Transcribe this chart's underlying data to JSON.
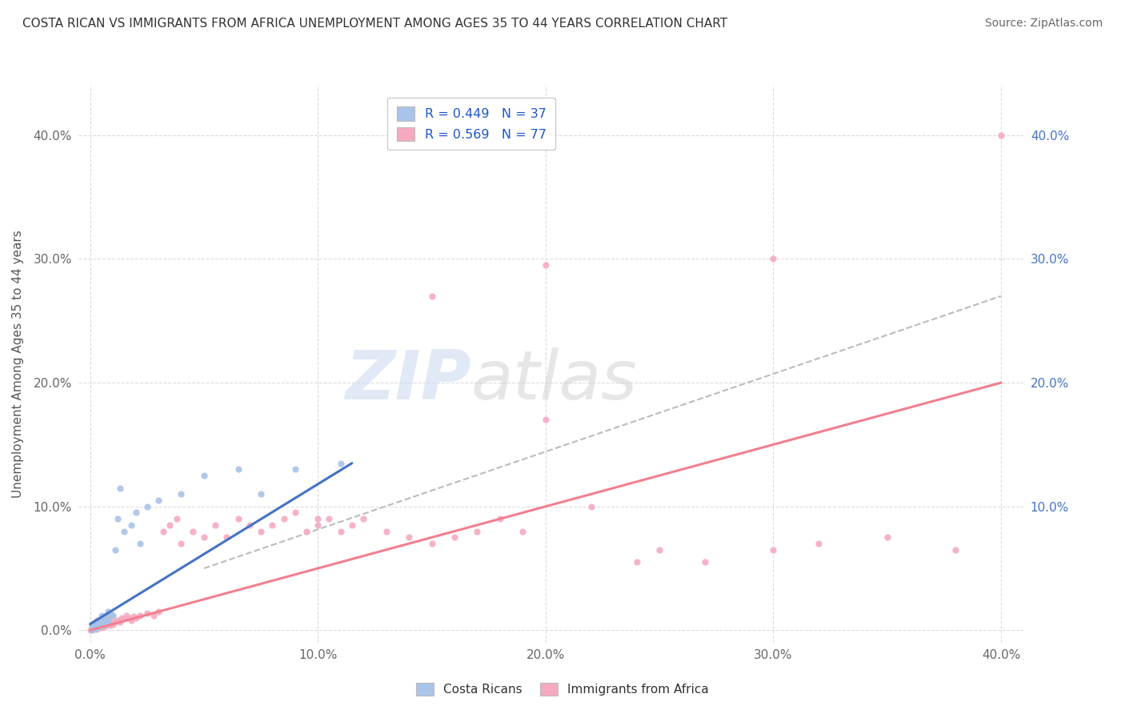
{
  "title": "COSTA RICAN VS IMMIGRANTS FROM AFRICA UNEMPLOYMENT AMONG AGES 35 TO 44 YEARS CORRELATION CHART",
  "source": "Source: ZipAtlas.com",
  "ylabel": "Unemployment Among Ages 35 to 44 years",
  "xlim": [
    -0.005,
    0.41
  ],
  "ylim": [
    -0.01,
    0.44
  ],
  "xticks": [
    0.0,
    0.1,
    0.2,
    0.3,
    0.4
  ],
  "yticks": [
    0.0,
    0.1,
    0.2,
    0.3,
    0.4
  ],
  "xticklabels": [
    "0.0%",
    "10.0%",
    "20.0%",
    "30.0%",
    "40.0%"
  ],
  "yticklabels_left": [
    "0.0%",
    "10.0%",
    "20.0%",
    "30.0%",
    "40.0%"
  ],
  "yticklabels_right": [
    "",
    "10.0%",
    "20.0%",
    "30.0%",
    "40.0%"
  ],
  "legend_r1": "R = 0.449   N = 37",
  "legend_r2": "R = 0.569   N = 77",
  "blue_color": "#A8C4E8",
  "pink_color": "#F5AABF",
  "blue_line_color": "#4472C4",
  "pink_line_color": "#F08090",
  "dash_line_color": "#BBBBBB",
  "grid_color": "#D8D8D8",
  "background_color": "#FFFFFF",
  "costa_rican_pts": {
    "x": [
      0.001,
      0.001,
      0.001,
      0.002,
      0.002,
      0.002,
      0.003,
      0.003,
      0.003,
      0.004,
      0.004,
      0.005,
      0.005,
      0.005,
      0.006,
      0.006,
      0.007,
      0.007,
      0.008,
      0.008,
      0.009,
      0.01,
      0.011,
      0.012,
      0.013,
      0.015,
      0.018,
      0.02,
      0.022,
      0.025,
      0.03,
      0.04,
      0.05,
      0.065,
      0.075,
      0.09,
      0.11
    ],
    "y": [
      0.0,
      0.002,
      0.005,
      0.001,
      0.003,
      0.006,
      0.002,
      0.004,
      0.007,
      0.003,
      0.008,
      0.004,
      0.007,
      0.012,
      0.005,
      0.01,
      0.006,
      0.012,
      0.008,
      0.015,
      0.014,
      0.012,
      0.065,
      0.09,
      0.115,
      0.08,
      0.085,
      0.095,
      0.07,
      0.1,
      0.105,
      0.11,
      0.125,
      0.13,
      0.11,
      0.13,
      0.135
    ]
  },
  "africa_pts": {
    "x": [
      0.0,
      0.001,
      0.001,
      0.002,
      0.002,
      0.003,
      0.003,
      0.003,
      0.004,
      0.004,
      0.005,
      0.005,
      0.006,
      0.006,
      0.007,
      0.007,
      0.008,
      0.008,
      0.009,
      0.009,
      0.01,
      0.01,
      0.011,
      0.012,
      0.013,
      0.014,
      0.015,
      0.016,
      0.017,
      0.018,
      0.019,
      0.02,
      0.022,
      0.025,
      0.028,
      0.03,
      0.032,
      0.035,
      0.038,
      0.04,
      0.045,
      0.05,
      0.055,
      0.06,
      0.065,
      0.07,
      0.075,
      0.08,
      0.085,
      0.09,
      0.095,
      0.1,
      0.105,
      0.11,
      0.115,
      0.12,
      0.13,
      0.14,
      0.15,
      0.16,
      0.17,
      0.18,
      0.19,
      0.2,
      0.22,
      0.24,
      0.25,
      0.27,
      0.3,
      0.32,
      0.35,
      0.38,
      0.4,
      0.2,
      0.15,
      0.1,
      0.3
    ],
    "y": [
      0.0,
      0.001,
      0.004,
      0.002,
      0.006,
      0.001,
      0.004,
      0.008,
      0.003,
      0.007,
      0.002,
      0.008,
      0.003,
      0.007,
      0.004,
      0.009,
      0.005,
      0.01,
      0.004,
      0.008,
      0.005,
      0.012,
      0.007,
      0.008,
      0.007,
      0.01,
      0.009,
      0.012,
      0.01,
      0.008,
      0.011,
      0.01,
      0.012,
      0.014,
      0.012,
      0.015,
      0.08,
      0.085,
      0.09,
      0.07,
      0.08,
      0.075,
      0.085,
      0.075,
      0.09,
      0.085,
      0.08,
      0.085,
      0.09,
      0.095,
      0.08,
      0.085,
      0.09,
      0.08,
      0.085,
      0.09,
      0.08,
      0.075,
      0.07,
      0.075,
      0.08,
      0.09,
      0.08,
      0.17,
      0.1,
      0.055,
      0.065,
      0.055,
      0.065,
      0.07,
      0.075,
      0.065,
      0.4,
      0.295,
      0.27,
      0.09,
      0.3
    ]
  },
  "pink_line": {
    "x0": 0.0,
    "x1": 0.4,
    "y0": 0.0,
    "y1": 0.2
  },
  "blue_line": {
    "x0": 0.0,
    "x1": 0.115,
    "y0": 0.005,
    "y1": 0.135
  },
  "dash_line": {
    "x0": 0.05,
    "x1": 0.4,
    "y0": 0.05,
    "y1": 0.27
  }
}
